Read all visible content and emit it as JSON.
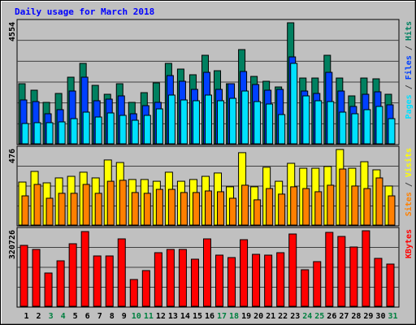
{
  "title": "Daily usage for March 2018",
  "legend_separator": " / ",
  "chart_data": [
    {
      "type": "bar",
      "ylim": [
        0,
        4554
      ],
      "yticks": [
        4554
      ],
      "series": [
        {
          "name": "Hits",
          "color": "#008060",
          "values": [
            2261,
            2017,
            1559,
            1895,
            2506,
            3026,
            2200,
            1864,
            2261,
            1559,
            1925,
            2292,
            3026,
            2812,
            2598,
            3331,
            2750,
            2261,
            3545,
            2536,
            2353,
            2139,
            4554,
            2475,
            2475,
            3331,
            2475,
            1803,
            2475,
            2445,
            1864
          ]
        },
        {
          "name": "Files",
          "color": "#0040ff",
          "values": [
            1650,
            1589,
            1131,
            1284,
            1986,
            2506,
            1620,
            1681,
            1803,
            1131,
            1436,
            1559,
            2567,
            2353,
            2048,
            2689,
            2048,
            2261,
            2720,
            2231,
            2017,
            2048,
            3270,
            1986,
            1895,
            2689,
            1986,
            1406,
            1864,
            1956,
            1467
          ]
        },
        {
          "name": "Pages",
          "color": "#00e0ff",
          "values": [
            764,
            795,
            795,
            825,
            947,
            1192,
            1008,
            1161,
            1070,
            886,
            1070,
            1314,
            1834,
            1650,
            1620,
            1834,
            1620,
            1711,
            1986,
            1589,
            1497,
            1100,
            3026,
            1803,
            1620,
            1589,
            1192,
            1131,
            1284,
            1406,
            947
          ]
        }
      ]
    },
    {
      "type": "bar",
      "ylim": [
        0,
        476
      ],
      "yticks": [
        476
      ],
      "series": [
        {
          "name": "Visits",
          "color": "#ffff00",
          "values": [
            271,
            338,
            266,
            297,
            307,
            333,
            297,
            410,
            394,
            287,
            287,
            276,
            333,
            276,
            287,
            307,
            328,
            241,
            456,
            241,
            364,
            276,
            389,
            358,
            358,
            369,
            476,
            358,
            399,
            348,
            246
          ]
        },
        {
          "name": "Sites",
          "color": "#ff8000",
          "values": [
            184,
            256,
            169,
            200,
            200,
            256,
            200,
            276,
            282,
            205,
            200,
            225,
            225,
            205,
            205,
            215,
            210,
            169,
            251,
            159,
            230,
            195,
            241,
            230,
            210,
            251,
            353,
            246,
            230,
            297,
            184
          ]
        }
      ]
    },
    {
      "type": "bar",
      "ylim": [
        0,
        320726
      ],
      "yticks": [
        320726
      ],
      "categories": [
        "1",
        "2",
        "3",
        "4",
        "5",
        "6",
        "7",
        "8",
        "9",
        "10",
        "11",
        "12",
        "13",
        "14",
        "15",
        "16",
        "17",
        "18",
        "19",
        "20",
        "21",
        "22",
        "23",
        "24",
        "25",
        "26",
        "27",
        "28",
        "29",
        "30",
        "31"
      ],
      "category_colors": [
        "#000000",
        "#000000",
        "#008040",
        "#008040",
        "#000000",
        "#000000",
        "#000000",
        "#000000",
        "#000000",
        "#008040",
        "#008040",
        "#000000",
        "#000000",
        "#000000",
        "#000000",
        "#000000",
        "#008040",
        "#008040",
        "#000000",
        "#000000",
        "#000000",
        "#000000",
        "#000000",
        "#008040",
        "#008040",
        "#000000",
        "#000000",
        "#000000",
        "#000000",
        "#000000",
        "#008040"
      ],
      "series": [
        {
          "name": "KBytes",
          "color": "#ff0000",
          "values": [
            258675,
            241430,
            141409,
            193144,
            265573,
            317308,
            213838,
            213838,
            286267,
            113817,
            151756,
            227634,
            241430,
            241430,
            200042,
            286267,
            217287,
            206940,
            282818,
            220736,
            217287,
            227634,
            306961,
            155205,
            189695,
            313859,
            296614,
            251777,
            320726,
            203491,
            179348
          ]
        }
      ]
    }
  ]
}
